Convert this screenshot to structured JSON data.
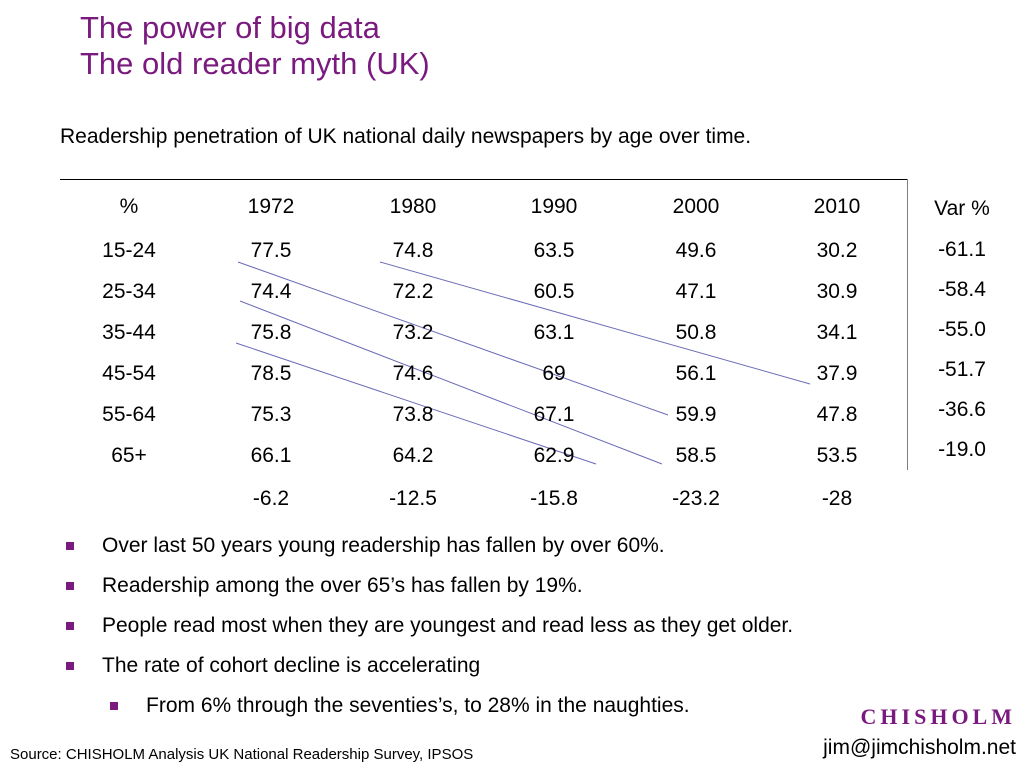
{
  "title": {
    "line1": "The power of big data",
    "line2": "The old reader myth (UK)"
  },
  "subtitle": "Readership penetration of UK national daily newspapers by age over time.",
  "table": {
    "corner": "%",
    "years": [
      "1972",
      "1980",
      "1990",
      "2000",
      "2010"
    ],
    "var_header": "Var %",
    "rows": [
      {
        "age": "15-24",
        "values": [
          "77.5",
          "74.8",
          "63.5",
          "49.6",
          "30.2"
        ],
        "var": "-61.1"
      },
      {
        "age": "25-34",
        "values": [
          "74.4",
          "72.2",
          "60.5",
          "47.1",
          "30.9"
        ],
        "var": "-58.4"
      },
      {
        "age": "35-44",
        "values": [
          "75.8",
          "73.2",
          "63.1",
          "50.8",
          "34.1"
        ],
        "var": "-55.0"
      },
      {
        "age": "45-54",
        "values": [
          "78.5",
          "74.6",
          "69",
          "56.1",
          "37.9"
        ],
        "var": "-51.7"
      },
      {
        "age": "55-64",
        "values": [
          "75.3",
          "73.8",
          "67.1",
          "59.9",
          "47.8"
        ],
        "var": "-36.6"
      },
      {
        "age": "65+",
        "values": [
          "66.1",
          "64.2",
          "62.9",
          "58.5",
          "53.5"
        ],
        "var": "-19.0"
      }
    ],
    "cohort_change": [
      "-6.2",
      "-12.5",
      "-15.8",
      "-23.2",
      "-28"
    ]
  },
  "bullets": [
    "Over last 50 years young readership has fallen by over 60%.",
    "Readership among the over 65’s has fallen by 19%.",
    "People read most when they are youngest and read less as they get older.",
    "The rate of cohort decline is accelerating"
  ],
  "sub_bullet": "From 6% through the seventies’s, to 28% in the naughties.",
  "source": "Source: CHISHOLM Analysis UK National Readership Survey, IPSOS",
  "brand": "CHISHOLM",
  "email": "jim@jimchisholm.net",
  "colors": {
    "accent": "#7a1a7e",
    "cohort_line": "#6b6bb8"
  }
}
